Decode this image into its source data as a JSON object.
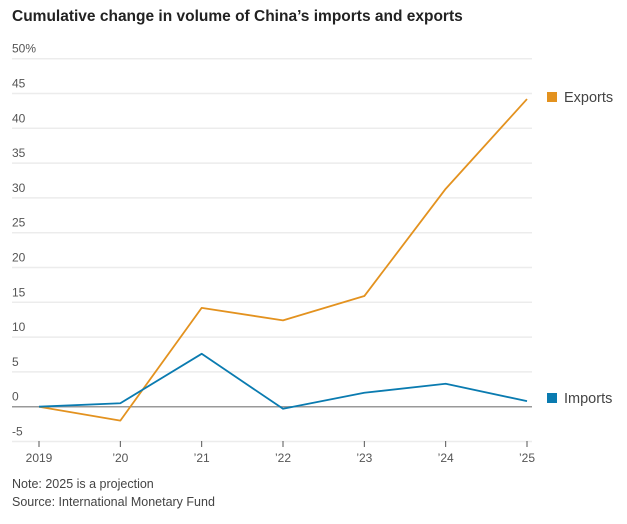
{
  "chart_data": {
    "type": "line",
    "title": "Cumulative change in volume of China’s imports and exports",
    "x": [
      "2019",
      "’20",
      "’21",
      "’22",
      "’23",
      "’24",
      "’25"
    ],
    "ylim": [
      -5,
      50
    ],
    "yticks": [
      -5,
      0,
      5,
      10,
      15,
      20,
      25,
      30,
      35,
      40,
      45,
      50
    ],
    "ytick_labels": [
      "-5",
      "0",
      "5",
      "10",
      "15",
      "20",
      "25",
      "30",
      "35",
      "40",
      "45",
      "50%"
    ],
    "grid": true,
    "legend_placement": "right (direct labels at line ends)",
    "series": [
      {
        "name": "Exports",
        "color": "#e3921f",
        "values": [
          0,
          -2.0,
          14.2,
          12.4,
          15.9,
          31.3,
          44.2
        ]
      },
      {
        "name": "Imports",
        "color": "#0a7bb0",
        "values": [
          0,
          0.5,
          7.6,
          -0.3,
          2.0,
          3.3,
          0.8
        ]
      }
    ]
  },
  "notes": {
    "note": "Note: 2025 is a projection",
    "source": "Source: International Monetary Fund"
  }
}
